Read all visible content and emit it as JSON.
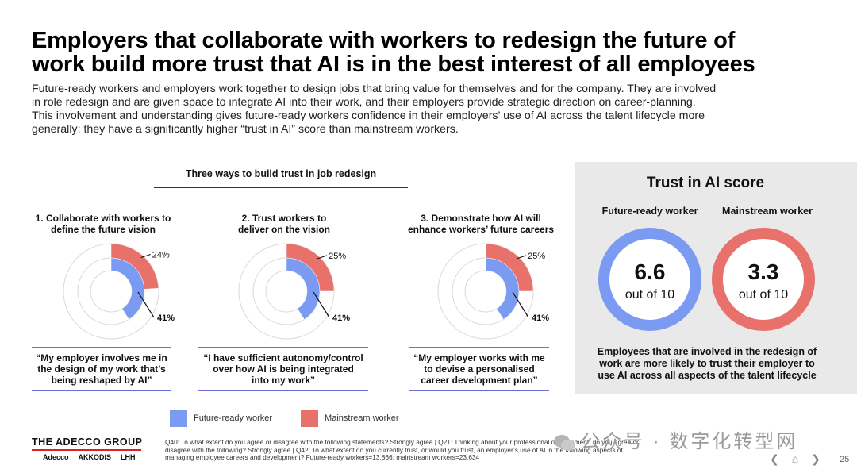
{
  "title_lines": [
    "Employers that collaborate with workers to redesign the future of",
    "work build more trust that AI is in the best interest of all employees"
  ],
  "intro_lines": [
    "Future-ready workers and employers work together to design jobs that bring value for themselves and for the company. They are involved",
    "in role redesign and are given space to integrate AI into their work, and their employers provide strategic direction on career-planning.",
    "This involvement and understanding gives future-ready workers confidence in their employers’ use of AI across the talent lifecycle more",
    "generally: they have a significantly higher “trust in AI” score than mainstream workers."
  ],
  "ways_title": "Three ways to build trust in job redesign",
  "chart_data": [
    {
      "type": "pie",
      "title_lines": [
        "1. Collaborate with workers to",
        "define the future vision"
      ],
      "series": [
        {
          "name": "Future-ready worker",
          "value": 41,
          "label": "41%"
        },
        {
          "name": "Mainstream worker",
          "value": 24,
          "label": "24%"
        }
      ],
      "quote_lines": [
        "“My employer involves me in",
        "the design of my work that’s",
        "being reshaped by AI”"
      ]
    },
    {
      "type": "pie",
      "title_lines": [
        "2. Trust workers to",
        "deliver on the vision"
      ],
      "series": [
        {
          "name": "Future-ready worker",
          "value": 41,
          "label": "41%"
        },
        {
          "name": "Mainstream worker",
          "value": 25,
          "label": "25%"
        }
      ],
      "quote_lines": [
        "“I have sufficient autonomy/control",
        "over how AI is being integrated",
        "into my work”"
      ]
    },
    {
      "type": "pie",
      "title_lines": [
        "3. Demonstrate how AI will",
        "enhance workers’ future careers"
      ],
      "series": [
        {
          "name": "Future-ready worker",
          "value": 41,
          "label": "41%"
        },
        {
          "name": "Mainstream worker",
          "value": 25,
          "label": "25%"
        }
      ],
      "quote_lines": [
        "“My employer works with me",
        "to devise a personalised",
        "career development plan”"
      ]
    }
  ],
  "legend": {
    "future_ready": "Future-ready worker",
    "mainstream": "Mainstream worker"
  },
  "colors": {
    "future_ready": "#7b9bf3",
    "mainstream": "#e8716b",
    "track": "#d9d9d9",
    "panel": "#e9e9e9"
  },
  "trust": {
    "title": "Trust in AI score",
    "future_ready_label": "Future-ready worker",
    "mainstream_label": "Mainstream worker",
    "future_ready_score": "6.6",
    "mainstream_score": "3.3",
    "out_of": "out of 10",
    "note_lines": [
      "Employees that are involved in the redesign of",
      "work are more likely to trust their employer to",
      "use AI across all aspects of the talent lifecycle"
    ]
  },
  "footer": {
    "logo": "THE ADECCO GROUP",
    "brands": [
      "Adecco",
      "AKKODIS",
      "LHH"
    ],
    "footnote_lines": [
      "Q40: To what extent do you agree or disagree with the following statements? Strongly agree | Q21: Thinking about your professional development, do you agree or",
      "disagree with the following? Strongly agree | Q42: To what extent do you currently trust, or would you trust, an employer’s use of AI in the following aspects of",
      "managing employee careers and development? Future-ready workers=13,866; mainstream workers=23,634"
    ],
    "watermark": "公众号 · 数字化转型网",
    "page_number": "25"
  }
}
